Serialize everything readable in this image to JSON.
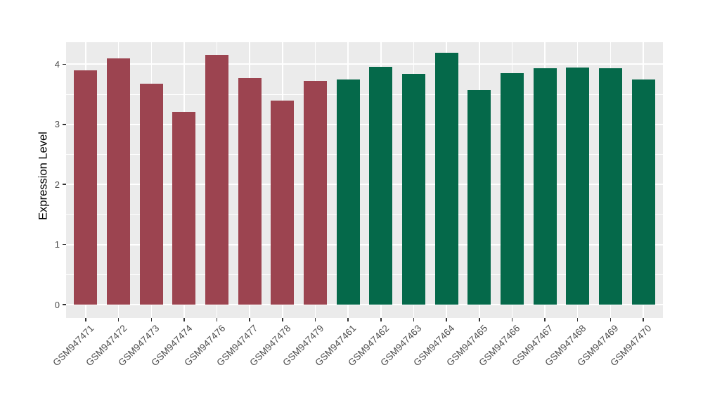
{
  "chart_data": {
    "type": "bar",
    "title": "",
    "xlabel": "",
    "ylabel": "Expression Level",
    "categories": [
      "GSM947471",
      "GSM947472",
      "GSM947473",
      "GSM947474",
      "GSM947476",
      "GSM947477",
      "GSM947478",
      "GSM947479",
      "GSM947461",
      "GSM947462",
      "GSM947463",
      "GSM947464",
      "GSM947465",
      "GSM947466",
      "GSM947467",
      "GSM947468",
      "GSM947469",
      "GSM947470"
    ],
    "values": [
      3.9,
      4.1,
      3.68,
      3.21,
      4.16,
      3.77,
      3.4,
      3.72,
      3.75,
      3.96,
      3.84,
      4.19,
      3.57,
      3.85,
      3.93,
      3.95,
      3.93,
      3.75
    ],
    "groups": [
      "red",
      "red",
      "red",
      "red",
      "red",
      "red",
      "red",
      "red",
      "green",
      "green",
      "green",
      "green",
      "green",
      "green",
      "green",
      "green",
      "green",
      "green"
    ],
    "group_colors": {
      "red": "#9C4450",
      "green": "#05694A"
    },
    "y_ticks": [
      0,
      1,
      2,
      3,
      4
    ],
    "y_tick_labels": [
      "0",
      "1",
      "2",
      "3",
      "4"
    ],
    "y_minor_ticks": [
      0.5,
      1.5,
      2.5,
      3.5
    ],
    "ylim": [
      -0.22,
      4.37
    ],
    "grid": "on",
    "legend": "none",
    "panel_background": "#EBEBEB",
    "gridline_color": "#FFFFFF"
  }
}
